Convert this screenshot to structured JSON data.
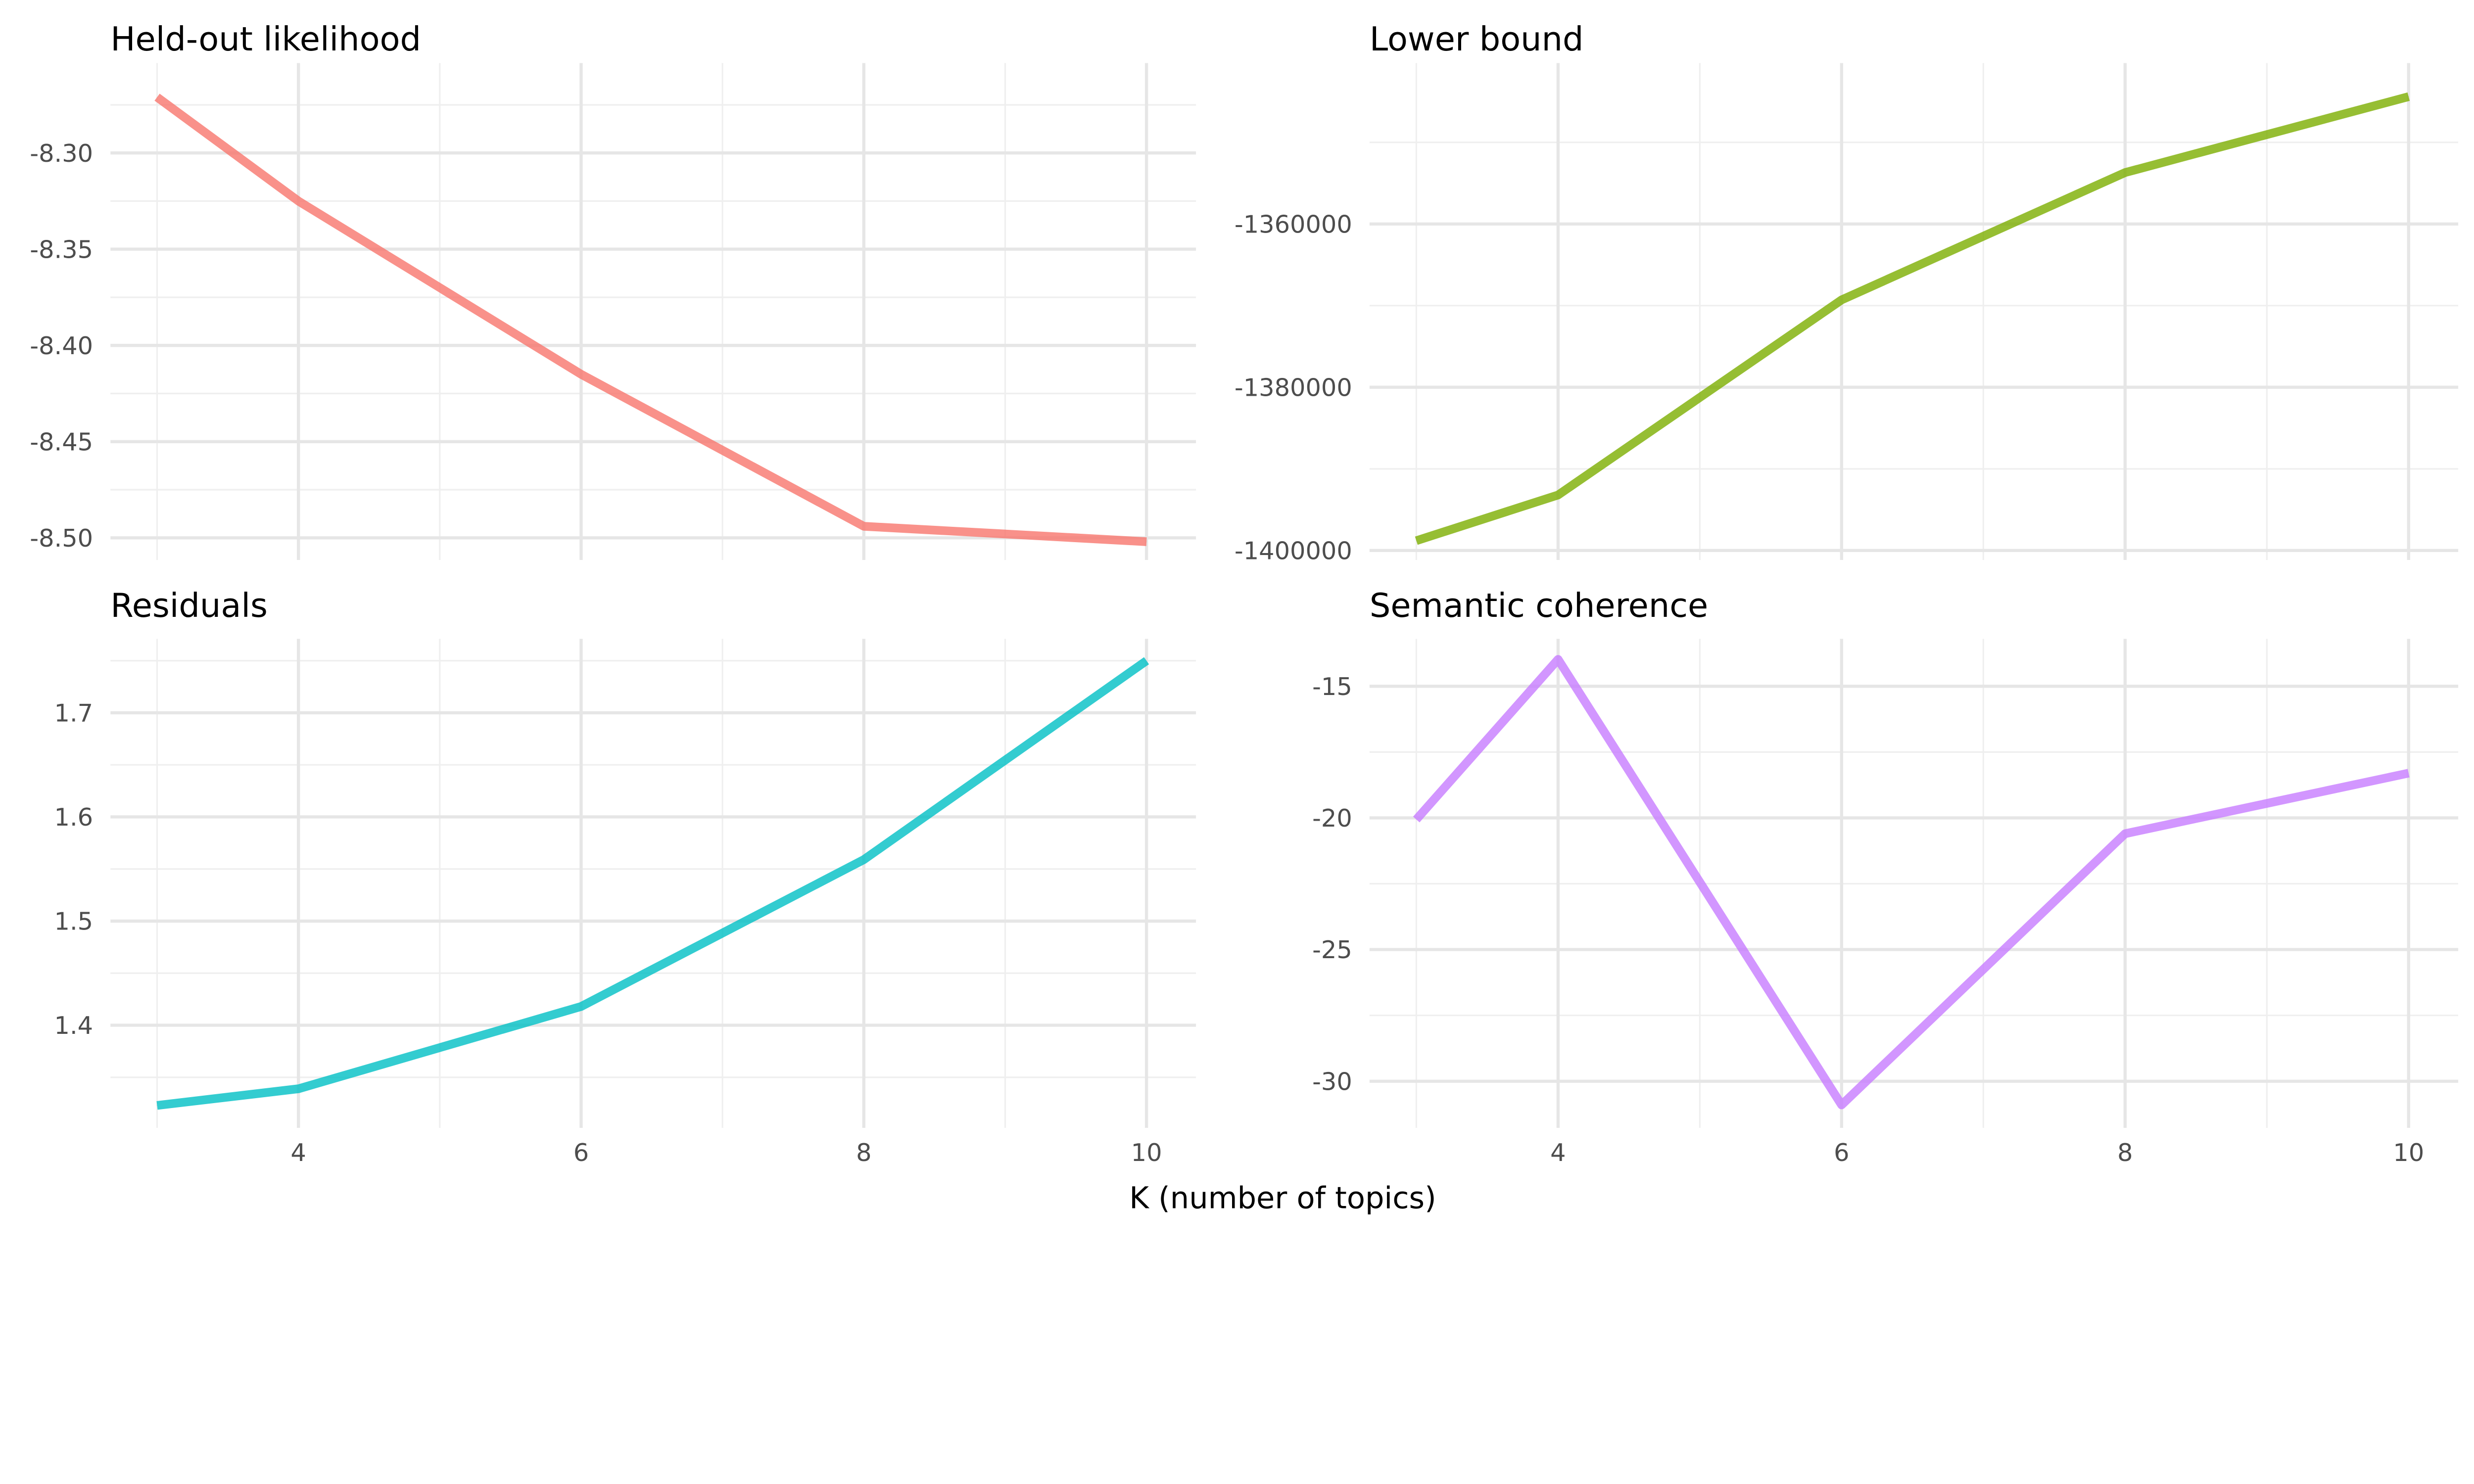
{
  "chart_data": [
    {
      "type": "line",
      "title": "Held-out likelihood",
      "x": [
        3,
        4,
        6,
        8,
        10
      ],
      "values": [
        -8.271,
        -8.325,
        -8.415,
        -8.494,
        -8.502
      ],
      "color": "#F8766D",
      "ylim": [
        -8.5115,
        -8.2533
      ],
      "yticks": [
        -8.3,
        -8.35,
        -8.4,
        -8.45,
        -8.5
      ],
      "ytick_labels": [
        "-8.30",
        "-8.35",
        "-8.40",
        "-8.45",
        "-8.50"
      ]
    },
    {
      "type": "line",
      "title": "Lower bound",
      "x": [
        3,
        4,
        6,
        8,
        10
      ],
      "values": [
        -1398800,
        -1393200,
        -1369300,
        -1353700,
        -1344400
      ],
      "color": "#7CAE00",
      "ylim": [
        -1401160,
        -1340290
      ],
      "yticks": [
        -1360000,
        -1380000,
        -1400000
      ],
      "ytick_labels": [
        "-1360000",
        "-1380000",
        "-1400000"
      ]
    },
    {
      "type": "line",
      "title": "Residuals",
      "x": [
        3,
        4,
        6,
        8,
        10
      ],
      "values": [
        1.323,
        1.339,
        1.418,
        1.559,
        1.75
      ],
      "color": "#00BFC4",
      "ylim": [
        1.3015,
        1.771
      ],
      "yticks": [
        1.7,
        1.6,
        1.5,
        1.4
      ],
      "ytick_labels": [
        "1.7",
        "1.6",
        "1.5",
        "1.4"
      ]
    },
    {
      "type": "line",
      "title": "Semantic coherence",
      "x": [
        3,
        4,
        6,
        8,
        10
      ],
      "values": [
        -20.06,
        -13.98,
        -30.9,
        -20.6,
        -18.3
      ],
      "color": "#C77CFF",
      "ylim": [
        -31.77,
        -13.2
      ],
      "yticks": [
        -15,
        -20,
        -25,
        -30
      ],
      "ytick_labels": [
        "-15",
        "-20",
        "-25",
        "-30"
      ]
    }
  ],
  "xaxis": {
    "label": "K (number of topics)",
    "xlim": [
      2.67,
      10.35
    ],
    "ticks": [
      4,
      6,
      8,
      10
    ],
    "tick_labels": [
      "4",
      "6",
      "8",
      "10"
    ]
  }
}
